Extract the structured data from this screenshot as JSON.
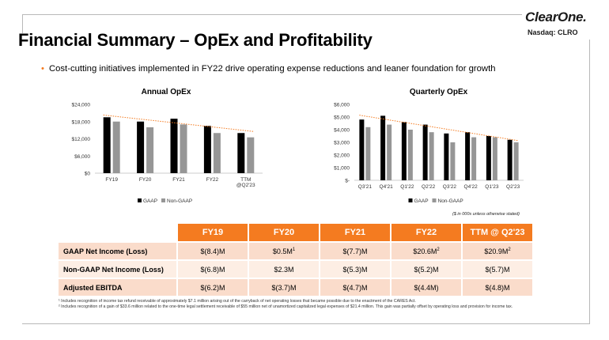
{
  "brand": {
    "logo": "ClearOne.",
    "ticker": "Nasdaq: CLRO",
    "accent_color": "#f47b20"
  },
  "slide": {
    "title": "Financial Summary – OpEx and Profitability",
    "bullet": "Cost-cutting initiatives implemented  in FY22 drive operating expense reductions and leaner foundation for growth"
  },
  "chart_data": [
    {
      "type": "bar",
      "title": "Annual OpEx",
      "categories": [
        "FY19",
        "FY20",
        "FY21",
        "FY22",
        "TTM\n@Q2'23"
      ],
      "series": [
        {
          "name": "GAAP",
          "values": [
            19500,
            18000,
            19000,
            16500,
            14000
          ],
          "color": "#000000"
        },
        {
          "name": "Non-GAAP",
          "values": [
            18000,
            16000,
            17000,
            14000,
            12500
          ],
          "color": "#969696"
        }
      ],
      "ylim": [
        0,
        24000
      ],
      "yticks": [
        0,
        6000,
        12000,
        18000,
        24000
      ],
      "ytick_labels": [
        "$0",
        "$6,000",
        "$12,000",
        "$18,000",
        "$24,000"
      ],
      "trendline": {
        "color": "#f47b20",
        "style": "dotted"
      },
      "legend": "bottom"
    },
    {
      "type": "bar",
      "title": "Quarterly OpEx",
      "categories": [
        "Q3'21",
        "Q4'21",
        "Q1'22",
        "Q2'22",
        "Q3'22",
        "Q4'22",
        "Q1'23",
        "Q2'23"
      ],
      "series": [
        {
          "name": "GAAP",
          "values": [
            4800,
            5100,
            4600,
            4400,
            3700,
            3800,
            3500,
            3200
          ],
          "color": "#000000"
        },
        {
          "name": "Non-GAAP",
          "values": [
            4200,
            4400,
            4000,
            3800,
            3000,
            3400,
            3400,
            3000
          ],
          "color": "#969696"
        }
      ],
      "ylim": [
        0,
        6000
      ],
      "yticks": [
        0,
        1000,
        2000,
        3000,
        4000,
        5000,
        6000
      ],
      "ytick_labels": [
        "$-",
        "$1,000",
        "$2,000",
        "$3,000",
        "$4,000",
        "$5,000",
        "$6,000"
      ],
      "trendline": {
        "color": "#f47b20",
        "style": "dotted"
      },
      "legend": "bottom"
    }
  ],
  "summary_table": {
    "units_note": "($ in 000s unless otherwise stated)",
    "headers": [
      "FY19",
      "FY20",
      "FY21",
      "FY22",
      "TTM @ Q2'23"
    ],
    "rows": [
      {
        "label": "GAAP Net Income (Loss)",
        "values": [
          "$(8.4)M",
          "$0.5M",
          "$(7.7)M",
          "$20.6M",
          "$20.9M"
        ],
        "sups": [
          "",
          "1",
          "",
          "2",
          "2"
        ]
      },
      {
        "label": "Non-GAAP Net Income (Loss)",
        "values": [
          "$(6.8)M",
          "$2.3M",
          "$(5.3)M",
          "$(5.2)M",
          "$(5.7)M"
        ],
        "sups": [
          "",
          "",
          "",
          "",
          ""
        ]
      },
      {
        "label": "Adjusted EBITDA",
        "values": [
          "$(6.2)M",
          "$(3.7)M",
          "$(4.7)M",
          "$(4.4M)",
          "$(4.8)M"
        ],
        "sups": [
          "",
          "",
          "",
          "",
          ""
        ]
      }
    ]
  },
  "footnotes": [
    "¹ Includes recognition of income tax refund receivable of approximately $7.1 million  arising out of the carryback of net operating losses that became possible due to the enactment of the CARES  Act.",
    "² Includes recognition of a gain  of $33.6 million  related to the one-time legal settlement receivable of $55 million  net of unamortized capitalized legal expenses of $21.4 million. This gain  was partially offset by operating loss and provision for income tax."
  ]
}
